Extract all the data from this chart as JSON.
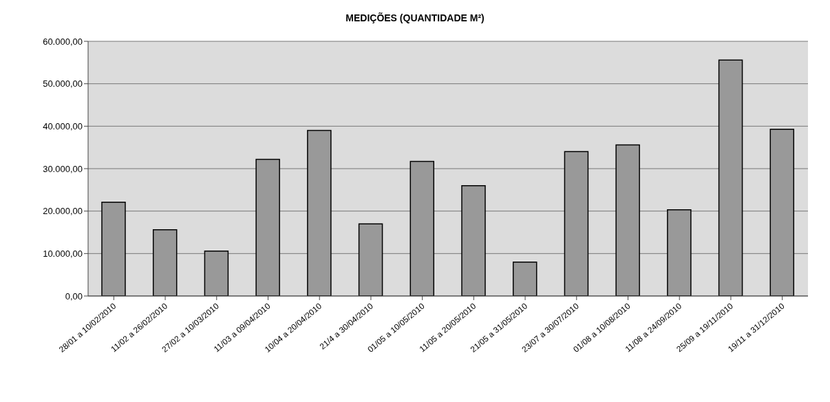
{
  "chart_data": {
    "type": "bar",
    "title": "MEDIÇÕES (QUANTIDADE M²)",
    "categories": [
      "28/01 a 10/02/2010",
      "11/02 a 26/02/2010",
      "27/02 a 10/03/2010",
      "11/03 a 09/04/2010",
      "10/04 a 20/04/2010",
      "21/4 a 30/04/2010",
      "01/05 a 10/05/2010",
      "11/05 a 20/05/2010",
      "21/05 a 31/05/2010",
      "23/07 a 30/07/2010",
      "01/08 a 10/08/2010",
      "11/08 a 24/09/2010",
      "25/09 a 19/11/2010",
      "19/11 a 31/12/2010"
    ],
    "values": [
      22100,
      15600,
      10600,
      32200,
      39000,
      17000,
      31700,
      26000,
      8000,
      34000,
      35600,
      20300,
      55600,
      39300
    ],
    "color": "#999999",
    "ylim": [
      0,
      60000
    ],
    "yticks": [
      {
        "value": 0,
        "label": "0,00"
      },
      {
        "value": 10000,
        "label": "10.000,00"
      },
      {
        "value": 20000,
        "label": "20.000,00"
      },
      {
        "value": 30000,
        "label": "30.000,00"
      },
      {
        "value": 40000,
        "label": "40.000,00"
      },
      {
        "value": 50000,
        "label": "50.000,00"
      },
      {
        "value": 60000,
        "label": "60.000,00"
      }
    ],
    "grid": "y"
  }
}
